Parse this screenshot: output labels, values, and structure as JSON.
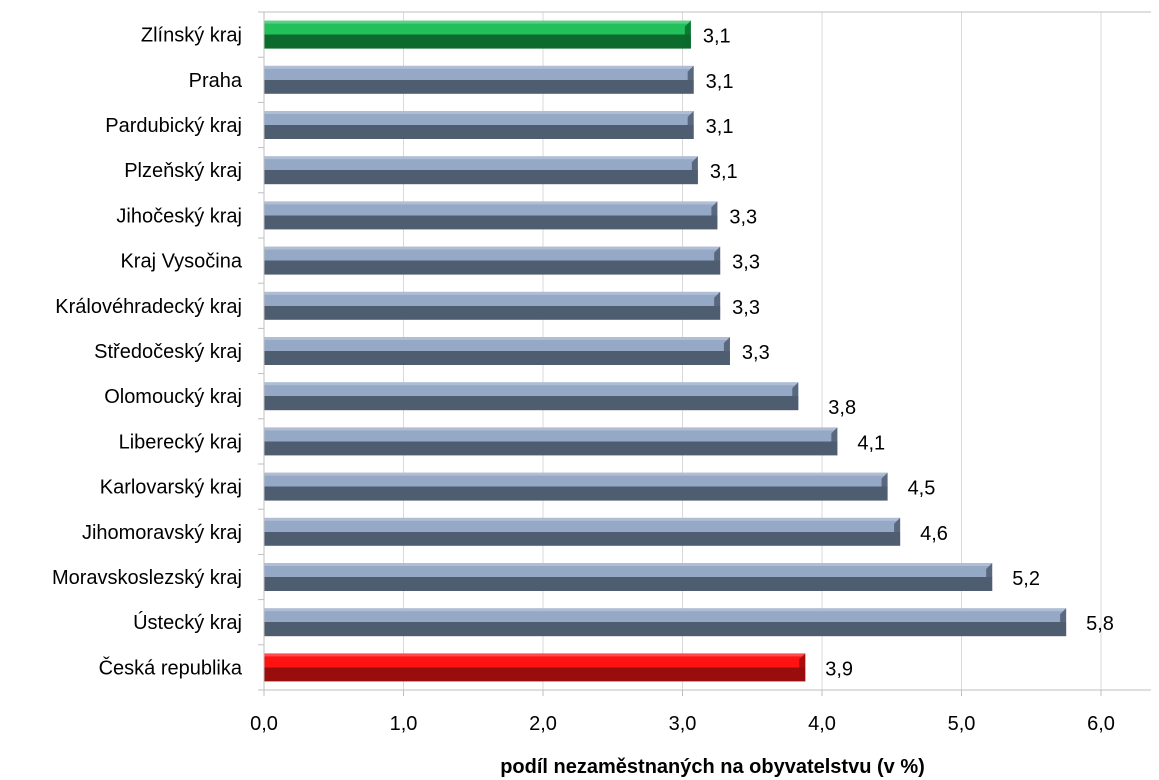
{
  "chart_data": {
    "type": "bar",
    "orientation": "horizontal",
    "categories": [
      "Zlínský kraj",
      "Praha",
      "Pardubický kraj",
      "Plzeňský kraj",
      "Jihočeský kraj",
      "Kraj Vysočina",
      "Královéhradecký kraj",
      "Středočeský kraj",
      "Olomoucký kraj",
      "Liberecký kraj",
      "Karlovarský kraj",
      "Jihomoravský kraj",
      "Moravskoslezský kraj",
      "Ústecký kraj",
      "Česká republika"
    ],
    "values": [
      3.06,
      3.08,
      3.08,
      3.11,
      3.25,
      3.27,
      3.27,
      3.34,
      3.83,
      4.11,
      4.47,
      4.56,
      5.22,
      5.75,
      3.88
    ],
    "value_labels": [
      "3,1",
      "3,1",
      "3,1",
      "3,1",
      "3,3",
      "3,3",
      "3,3",
      "3,3",
      "3,8",
      "4,1",
      "4,5",
      "4,6",
      "5,2",
      "5,8",
      "3,9"
    ],
    "bar_colors": [
      "green",
      "gray",
      "gray",
      "gray",
      "gray",
      "gray",
      "gray",
      "gray",
      "gray",
      "gray",
      "gray",
      "gray",
      "gray",
      "gray",
      "red"
    ],
    "colors": {
      "green": {
        "top": "#22c05a",
        "bottom": "#0b6a2c"
      },
      "gray": {
        "top": "#95a9c6",
        "bottom": "#4f5d71"
      },
      "red": {
        "top": "#ff1212",
        "bottom": "#9a0d0d"
      }
    },
    "xlim": [
      0,
      6
    ],
    "xticks": [
      0,
      1,
      2,
      3,
      4,
      5,
      6
    ],
    "xtick_labels": [
      "0,0",
      "1,0",
      "2,0",
      "3,0",
      "4,0",
      "5,0",
      "6,0"
    ],
    "xlabel": "podíl nezaměstnaných na obyvatelstvu (v %)",
    "ylabel": "",
    "title": "",
    "grid": "vertical"
  }
}
